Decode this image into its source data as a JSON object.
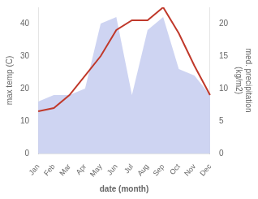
{
  "chart_data": {
    "type": "line",
    "categories": [
      "Jan",
      "Feb",
      "Mar",
      "Apr",
      "May",
      "Jun",
      "Jul",
      "Aug",
      "Sep",
      "Oct",
      "Nov",
      "Dec"
    ],
    "xlabel": "date (month)",
    "ylabel": "max temp (C)",
    "y2label": "med. precipitation\n(kg/m2)",
    "series": [
      {
        "type": "line",
        "color": "#c0392b",
        "values": [
          13,
          14,
          18,
          24,
          30,
          38,
          41,
          41,
          45,
          37,
          27,
          18
        ]
      },
      {
        "type": "area",
        "axis": "y2",
        "color": "#c5cdf0",
        "values": [
          8,
          9,
          9,
          10,
          20,
          21,
          9,
          19,
          21,
          13,
          12,
          9
        ]
      }
    ],
    "ylim": [
      0,
      45
    ],
    "yticks": [
      0,
      10,
      20,
      30,
      40
    ],
    "y2lim": [
      0,
      22.5
    ],
    "y2ticks": [
      0,
      5,
      10,
      15,
      20
    ],
    "grid": false
  }
}
